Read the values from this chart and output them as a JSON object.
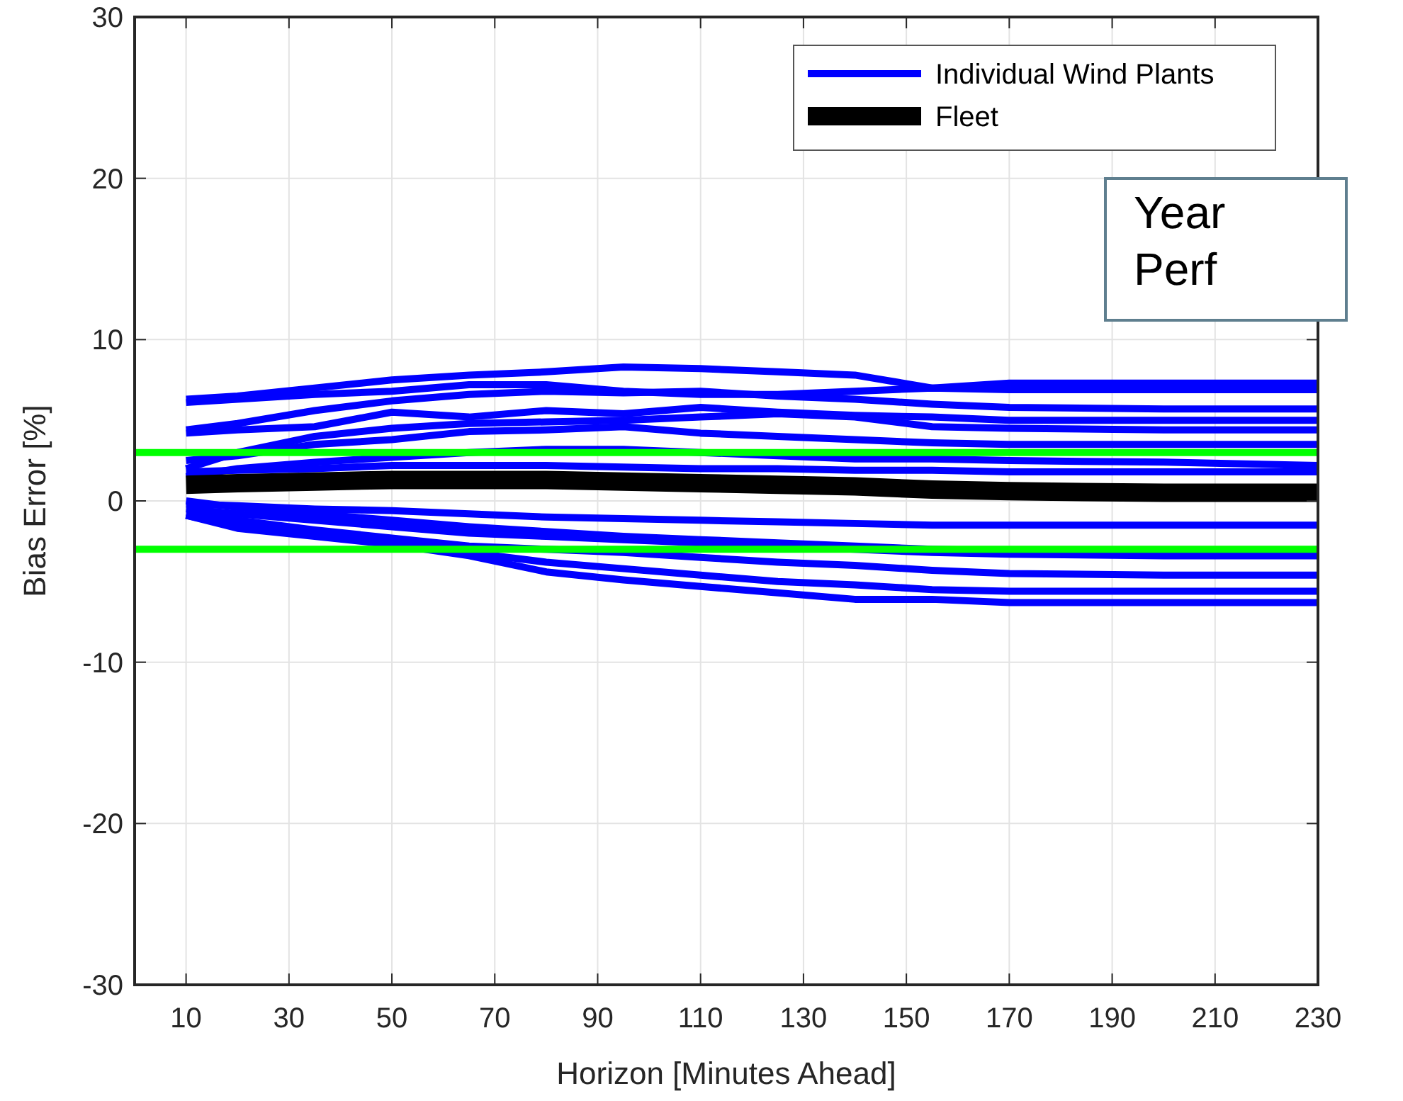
{
  "chart_data": {
    "type": "line",
    "xlabel": "Horizon [Minutes Ahead]",
    "ylabel": "Bias Error [%]",
    "x": [
      10,
      20,
      35,
      50,
      65,
      80,
      95,
      110,
      125,
      140,
      155,
      170,
      200,
      230
    ],
    "xlim": [
      0,
      230
    ],
    "xticks": [
      10,
      30,
      50,
      70,
      90,
      110,
      130,
      150,
      170,
      190,
      210,
      230
    ],
    "ylim": [
      -30,
      30
    ],
    "yticks": [
      -30,
      -20,
      -10,
      0,
      10,
      20,
      30
    ],
    "grid": true,
    "legend": "top right",
    "line_style": "solid",
    "marker": "none",
    "annotations": [
      "Year",
      "Perf"
    ],
    "ref_lines": [
      {
        "axis": "y",
        "value": 3,
        "label": null,
        "color": "#00ff00"
      },
      {
        "axis": "y",
        "value": -3,
        "label": null,
        "color": "#00ff00"
      }
    ],
    "series": [
      {
        "name": "Individual Wind Plants",
        "color": "#0000ff",
        "values": [
          6.3,
          6.5,
          7.0,
          7.5,
          7.8,
          8.0,
          8.3,
          8.2,
          8.0,
          7.8,
          7.0,
          7.3,
          7.3,
          7.3
        ]
      },
      {
        "color": "#0000ff",
        "values": [
          6.1,
          6.3,
          6.6,
          6.8,
          7.2,
          7.2,
          6.8,
          6.6,
          6.6,
          6.8,
          7.0,
          6.9,
          6.9,
          6.9
        ]
      },
      {
        "color": "#0000ff",
        "values": [
          4.4,
          4.8,
          5.6,
          6.2,
          6.6,
          6.8,
          6.7,
          6.8,
          6.5,
          6.3,
          6.0,
          5.8,
          5.7,
          5.7
        ]
      },
      {
        "color": "#0000ff",
        "values": [
          4.2,
          4.4,
          4.6,
          5.5,
          5.2,
          5.6,
          5.4,
          5.8,
          5.5,
          5.3,
          5.2,
          5.0,
          5.0,
          5.0
        ]
      },
      {
        "color": "#0000ff",
        "values": [
          2.0,
          3.0,
          4.0,
          4.5,
          4.8,
          4.9,
          5.0,
          5.2,
          5.4,
          5.2,
          4.6,
          4.5,
          4.4,
          4.4
        ]
      },
      {
        "color": "#0000ff",
        "values": [
          2.5,
          2.8,
          3.5,
          3.8,
          4.3,
          4.4,
          4.6,
          4.2,
          4.0,
          3.8,
          3.6,
          3.5,
          3.5,
          3.5
        ]
      },
      {
        "color": "#0000ff",
        "values": [
          1.5,
          2.0,
          2.4,
          2.7,
          3.0,
          3.2,
          3.2,
          3.0,
          2.8,
          2.6,
          2.6,
          2.5,
          2.4,
          2.2
        ]
      },
      {
        "color": "#0000ff",
        "values": [
          1.8,
          1.9,
          2.0,
          2.2,
          2.2,
          2.2,
          2.1,
          2.0,
          2.0,
          1.9,
          1.9,
          1.8,
          1.8,
          1.8
        ]
      },
      {
        "color": "#0000ff",
        "values": [
          -0.2,
          -0.3,
          -0.5,
          -0.6,
          -0.8,
          -1.0,
          -1.1,
          -1.2,
          -1.3,
          -1.4,
          -1.5,
          -1.5,
          -1.5,
          -1.5
        ]
      },
      {
        "color": "#0000ff",
        "values": [
          0.0,
          -0.4,
          -0.8,
          -1.2,
          -1.6,
          -1.9,
          -2.2,
          -2.4,
          -2.6,
          -2.8,
          -3.0,
          -3.1,
          -3.2,
          -3.3
        ]
      },
      {
        "color": "#0000ff",
        "values": [
          -0.5,
          -0.8,
          -1.2,
          -1.6,
          -2.0,
          -2.2,
          -2.4,
          -2.6,
          -2.8,
          -3.0,
          -3.2,
          -3.3,
          -3.4,
          -3.4
        ]
      },
      {
        "color": "#0000ff",
        "values": [
          -0.8,
          -1.2,
          -1.8,
          -2.3,
          -2.8,
          -3.0,
          -3.2,
          -3.5,
          -3.8,
          -4.0,
          -4.3,
          -4.5,
          -4.6,
          -4.6
        ]
      },
      {
        "color": "#0000ff",
        "values": [
          -0.9,
          -1.6,
          -2.0,
          -2.6,
          -3.2,
          -3.8,
          -4.2,
          -4.6,
          -5.0,
          -5.2,
          -5.5,
          -5.6,
          -5.6,
          -5.6
        ]
      },
      {
        "color": "#0000ff",
        "values": [
          -0.9,
          -1.7,
          -2.2,
          -2.7,
          -3.4,
          -4.4,
          -4.9,
          -5.3,
          -5.7,
          -6.1,
          -6.1,
          -6.3,
          -6.3,
          -6.3
        ]
      },
      {
        "name": "Fleet",
        "color": "#000000",
        "values": [
          1.0,
          1.1,
          1.2,
          1.3,
          1.3,
          1.3,
          1.2,
          1.1,
          1.0,
          0.9,
          0.7,
          0.6,
          0.5,
          0.5
        ]
      }
    ]
  }
}
